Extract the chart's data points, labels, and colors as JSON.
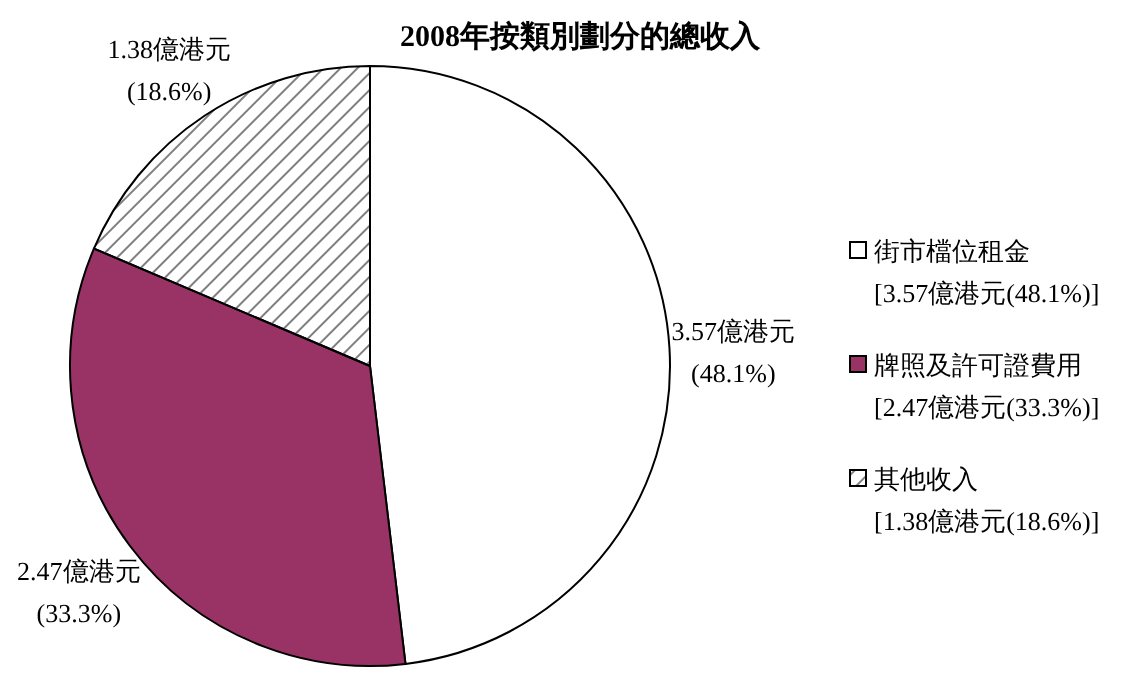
{
  "chart_data": {
    "type": "pie",
    "title": "2008年按類別劃分的總收入",
    "categories": [
      "街市檔位租金\n[3.57億港元(48.1%)]",
      "牌照及許可證費用\n[2.47億港元(33.3%)]",
      "其他收入\n[1.38億港元(18.6%)]"
    ],
    "values": [
      3.57,
      2.47,
      1.38
    ],
    "colors": [
      "#ffffff",
      "#993366",
      "#808080"
    ],
    "value_labels": [
      "3.57億港元\n(48.1%)",
      "2.47億港元\n(33.3%)",
      "1.38億港元\n(18.6%)"
    ],
    "legend": "right"
  }
}
